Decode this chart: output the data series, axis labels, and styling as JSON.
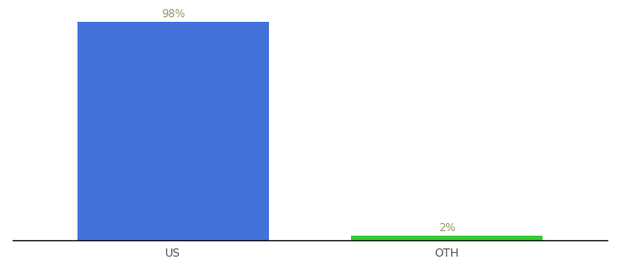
{
  "categories": [
    "US",
    "OTH"
  ],
  "values": [
    98,
    2
  ],
  "bar_colors": [
    "#4472db",
    "#33cc33"
  ],
  "label_texts": [
    "98%",
    "2%"
  ],
  "label_color": "#999966",
  "ylim": [
    0,
    104
  ],
  "background_color": "#ffffff",
  "bar_width": 0.7,
  "label_fontsize": 8.5,
  "tick_fontsize": 9,
  "bar_positions": [
    0.27,
    0.73
  ],
  "xlim": [
    0.0,
    1.0
  ]
}
